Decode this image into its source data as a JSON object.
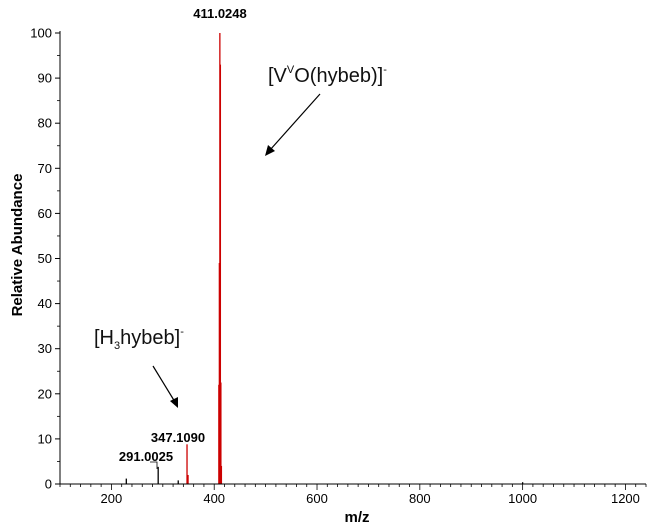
{
  "chart_data": {
    "type": "bar",
    "xlabel": "m/z",
    "ylabel": "Relative Abundance",
    "xlim": [
      100,
      1240
    ],
    "ylim": [
      0,
      100
    ],
    "x_ticks": [
      200,
      400,
      600,
      800,
      1000,
      1200
    ],
    "y_ticks": [
      0,
      10,
      20,
      30,
      40,
      50,
      60,
      70,
      80,
      90,
      100
    ],
    "series": [
      {
        "color": "#cc0000",
        "peaks": [
          {
            "x": 347.1,
            "y": 8.8
          },
          {
            "x": 349.1,
            "y": 2.0
          },
          {
            "x": 409.0,
            "y": 22.0
          },
          {
            "x": 410.0,
            "y": 49.0
          },
          {
            "x": 411.0,
            "y": 100.0
          },
          {
            "x": 412.0,
            "y": 93.0
          },
          {
            "x": 413.0,
            "y": 22.5
          },
          {
            "x": 414.0,
            "y": 4.0
          }
        ]
      },
      {
        "color": "#000000",
        "peaks": [
          {
            "x": 229.0,
            "y": 1.2
          },
          {
            "x": 291.0,
            "y": 3.8
          },
          {
            "x": 330.0,
            "y": 0.8
          },
          {
            "x": 1000.0,
            "y": 0.4
          }
        ]
      }
    ],
    "peak_labels": [
      {
        "text": "411.0248",
        "x": 411.0,
        "y": 100.0
      },
      {
        "text": "347.1090",
        "x": 347.1,
        "y": 8.8
      },
      {
        "text": "291.0025",
        "x": 291.0,
        "y": 3.8
      }
    ],
    "annotations": [
      {
        "id": "vo-hybeb",
        "parts": {
          "open": "[V",
          "sup1": "V",
          "mid": "O(hybeb)]",
          "sup2": "-"
        }
      },
      {
        "id": "h3-hybeb",
        "parts": {
          "open": "[H",
          "sub": "3",
          "mid": "hybeb]",
          "sup": "-"
        }
      }
    ]
  }
}
